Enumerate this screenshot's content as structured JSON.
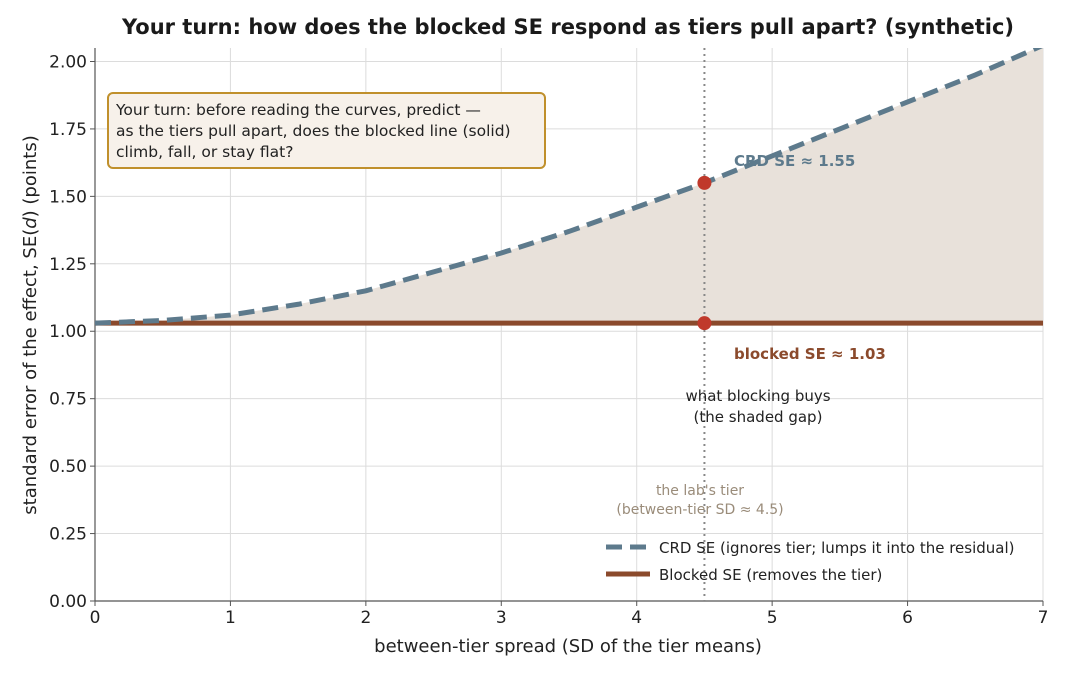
{
  "chart_data": {
    "type": "line",
    "title": "Your turn: how does the blocked SE respond as tiers pull apart? (synthetic)",
    "xlabel": "between-tier spread (SD of the tier means)",
    "ylabel_prefix": "standard error of the effect, ",
    "ylabel_func": "SE(",
    "ylabel_var": "d",
    "ylabel_suffix": ") (points)",
    "xlim": [
      0,
      7
    ],
    "ylim": [
      0,
      2.05
    ],
    "x_ticks": [
      "0",
      "1",
      "2",
      "3",
      "4",
      "5",
      "6",
      "7"
    ],
    "y_ticks": [
      "0.00",
      "0.25",
      "0.50",
      "0.75",
      "1.00",
      "1.25",
      "1.50",
      "1.75",
      "2.00"
    ],
    "grid": true,
    "series": [
      {
        "name": "CRD SE (ignores tier; lumps it into the residual)",
        "style": "dashed",
        "color": "#5d7a8c",
        "x": [
          0,
          0.5,
          1,
          1.5,
          2,
          2.5,
          3,
          3.5,
          4,
          4.5,
          5,
          5.5,
          6,
          6.5,
          7
        ],
        "y": [
          1.03,
          1.04,
          1.06,
          1.1,
          1.15,
          1.22,
          1.29,
          1.37,
          1.46,
          1.55,
          1.65,
          1.75,
          1.85,
          1.95,
          2.06
        ]
      },
      {
        "name": "Blocked SE (removes the tier)",
        "style": "solid",
        "color": "#8b4a2c",
        "x": [
          0,
          7
        ],
        "y": [
          1.03,
          1.03
        ]
      }
    ],
    "shaded_gap_color": "#e8e1da",
    "marker_x": 4.5,
    "markers": [
      {
        "x": 4.5,
        "y": 1.55
      },
      {
        "x": 4.5,
        "y": 1.03
      }
    ],
    "marker_color": "#c0392b",
    "annotations": {
      "crd": "CRD SE  ≈  1.55",
      "blocked": "blocked SE  ≈  1.03",
      "gap_line1": "what blocking buys",
      "gap_line2": "(the shaded gap)",
      "tier_line1": "the lab's tier",
      "tier_line2": "(between-tier SD  ≈  4.5)"
    },
    "callout": {
      "lines": [
        "Your turn: before reading the curves, predict —",
        "as the tiers pull apart, does the blocked line (solid)",
        "climb, fall, or stay flat?"
      ],
      "border_color": "#c0902c",
      "fill_color": "#f7f1ea"
    },
    "legend_position": "lower-right"
  }
}
